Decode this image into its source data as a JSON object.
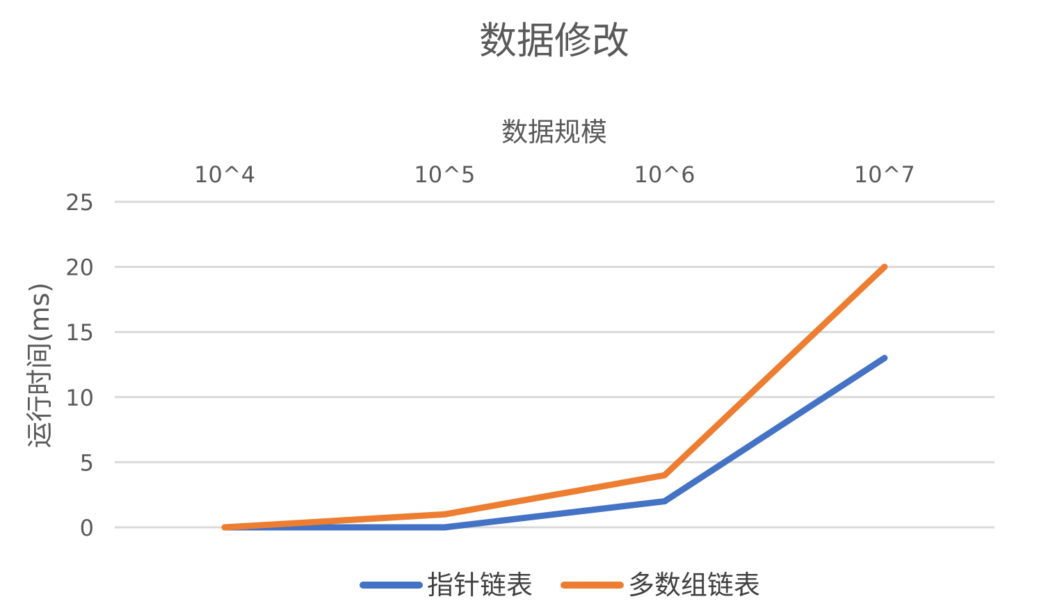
{
  "chart_data": {
    "type": "line",
    "title": "数据修改",
    "xlabel": "数据规模",
    "ylabel": "运行时间(ms)",
    "categories": [
      "10^4",
      "10^5",
      "10^6",
      "10^7"
    ],
    "x_axis_position": "top",
    "ylim": [
      0,
      25
    ],
    "yticks": [
      0,
      5,
      10,
      15,
      20,
      25
    ],
    "grid": true,
    "legend_position": "bottom",
    "series": [
      {
        "name": "指针链表",
        "color": "#4472c4",
        "values": [
          0,
          0,
          2,
          13
        ]
      },
      {
        "name": "多数组链表",
        "color": "#ed7d31",
        "values": [
          0,
          1,
          4,
          20
        ]
      }
    ]
  }
}
